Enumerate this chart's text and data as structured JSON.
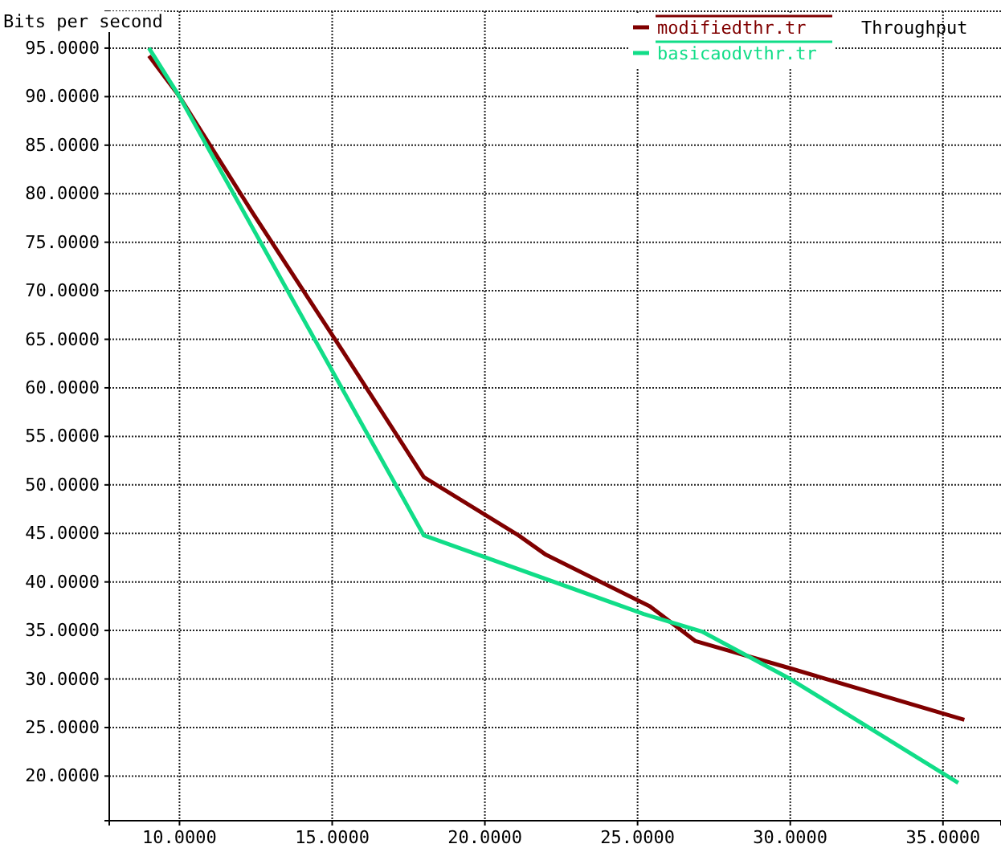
{
  "chart_data": {
    "type": "line",
    "title": "Throughput",
    "ylabel": "Bits per second",
    "xlim": [
      7.7,
      36.9
    ],
    "ylim": [
      15.4,
      98.8
    ],
    "xticks": [
      {
        "value": 10,
        "label": "10.0000"
      },
      {
        "value": 15,
        "label": "15.0000"
      },
      {
        "value": 20,
        "label": "20.0000"
      },
      {
        "value": 25,
        "label": "25.0000"
      },
      {
        "value": 30,
        "label": "30.0000"
      },
      {
        "value": 35,
        "label": "35.0000"
      }
    ],
    "yticks": [
      {
        "value": 20,
        "label": "20.0000"
      },
      {
        "value": 25,
        "label": "25.0000"
      },
      {
        "value": 30,
        "label": "30.0000"
      },
      {
        "value": 35,
        "label": "35.0000"
      },
      {
        "value": 40,
        "label": "40.0000"
      },
      {
        "value": 45,
        "label": "45.0000"
      },
      {
        "value": 50,
        "label": "50.0000"
      },
      {
        "value": 55,
        "label": "55.0000"
      },
      {
        "value": 60,
        "label": "60.0000"
      },
      {
        "value": 65,
        "label": "65.0000"
      },
      {
        "value": 70,
        "label": "70.0000"
      },
      {
        "value": 75,
        "label": "75.0000"
      },
      {
        "value": 80,
        "label": "80.0000"
      },
      {
        "value": 85,
        "label": "85.0000"
      },
      {
        "value": 90,
        "label": "90.0000"
      },
      {
        "value": 95,
        "label": "95.0000"
      }
    ],
    "grid": true,
    "legend": "top right",
    "line_style": "solid",
    "series": [
      {
        "name": "modifiedthr.tr",
        "color": "#800000",
        "x": [
          9.0,
          10.0,
          12.4,
          15.3,
          18.0,
          21.1,
          22.0,
          25.4,
          26.9,
          30.0,
          35.7
        ],
        "values": [
          94.2,
          90,
          78,
          64,
          50.8,
          44.8,
          42.8,
          37.5,
          33.9,
          31.1,
          25.8
        ]
      },
      {
        "name": "basicaodvthr.tr",
        "color": "#11dd88",
        "x": [
          9.0,
          10.0,
          18.0,
          25.2,
          27.1,
          30.0,
          35.5
        ],
        "values": [
          95,
          90,
          44.8,
          36.7,
          34.9,
          30.0,
          19.3
        ]
      }
    ]
  }
}
